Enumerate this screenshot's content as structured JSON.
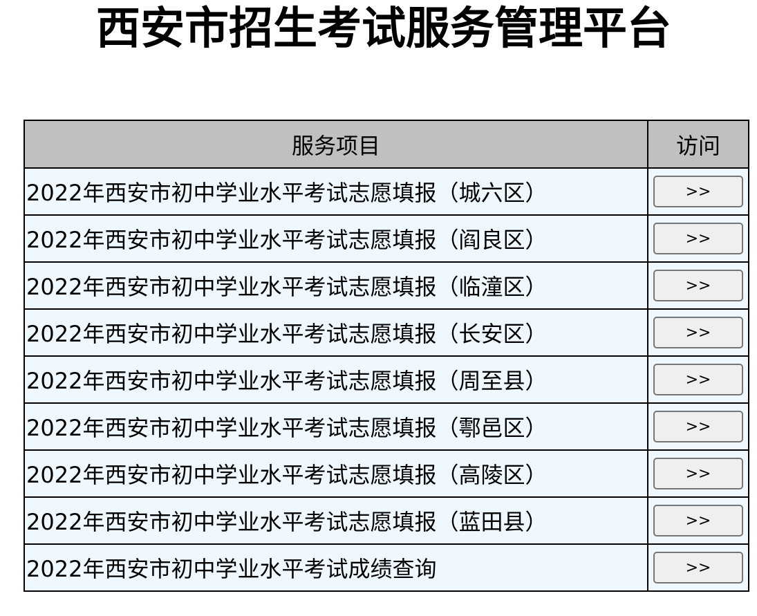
{
  "title": "西安市招生考试服务管理平台",
  "table": {
    "headers": [
      "服务项目",
      "访问"
    ],
    "rows": [
      {
        "name": "2022年西安市初中学业水平考试志愿填报（城六区）",
        "button": ">>"
      },
      {
        "name": "2022年西安市初中学业水平考试志愿填报（阎良区）",
        "button": ">>"
      },
      {
        "name": "2022年西安市初中学业水平考试志愿填报（临潼区）",
        "button": ">>"
      },
      {
        "name": "2022年西安市初中学业水平考试志愿填报（长安区）",
        "button": ">>"
      },
      {
        "name": "2022年西安市初中学业水平考试志愿填报（周至县）",
        "button": ">>"
      },
      {
        "name": "2022年西安市初中学业水平考试志愿填报（鄠邑区）",
        "button": ">>"
      },
      {
        "name": "2022年西安市初中学业水平考试志愿填报（高陵区）",
        "button": ">>"
      },
      {
        "name": "2022年西安市初中学业水平考试志愿填报（蓝田县）",
        "button": ">>"
      },
      {
        "name": "2022年西安市初中学业水平考试成绩查询",
        "button": ">>"
      }
    ]
  },
  "colors": {
    "header_bg": "#c0c0c0",
    "row_bg": "#f0f8ff"
  }
}
